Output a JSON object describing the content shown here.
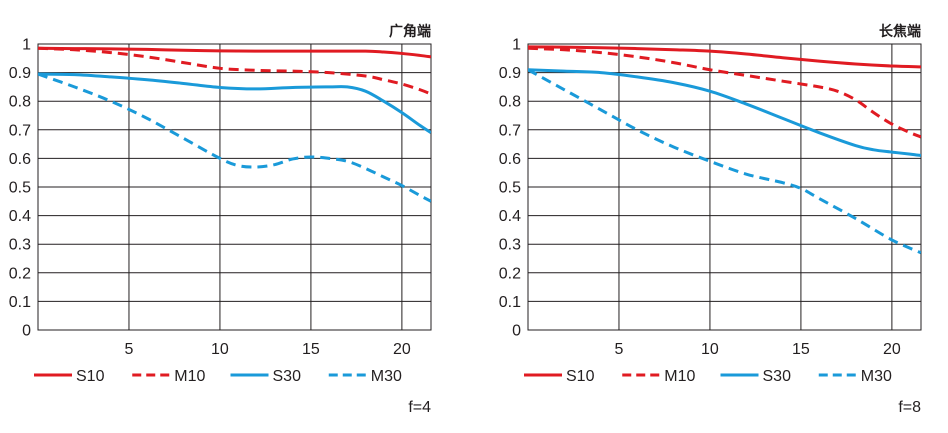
{
  "chart_data": [
    {
      "type": "line",
      "title": "广角端",
      "aperture_label": "f=4",
      "xlabel": "",
      "ylabel": "",
      "xlim": [
        0,
        21.6
      ],
      "ylim": [
        0,
        1
      ],
      "x_ticks": [
        5,
        10,
        15,
        20
      ],
      "x_tick_labels": [
        "5",
        "10",
        "15",
        "20"
      ],
      "y_ticks": [
        0,
        0.1,
        0.2,
        0.3,
        0.4,
        0.5,
        0.6,
        0.7,
        0.8,
        0.9,
        1
      ],
      "y_tick_labels": [
        "0",
        "0.1",
        "0.2",
        "0.3",
        "0.4",
        "0.5",
        "0.6",
        "0.7",
        "0.8",
        "0.9",
        "1"
      ],
      "grid": true,
      "legend_position": "bottom",
      "series": [
        {
          "name": "S10",
          "color": "#e01b22",
          "dash": "solid",
          "x": [
            0,
            2,
            4,
            6,
            8,
            10,
            12,
            14,
            16,
            18,
            19,
            20,
            21,
            21.6
          ],
          "values": [
            0.985,
            0.984,
            0.983,
            0.981,
            0.978,
            0.976,
            0.975,
            0.975,
            0.975,
            0.975,
            0.972,
            0.967,
            0.96,
            0.955
          ]
        },
        {
          "name": "M10",
          "color": "#e01b22",
          "dash": "dashed",
          "x": [
            0,
            2,
            4,
            6,
            8,
            10,
            12,
            14,
            16,
            18,
            19,
            20,
            21,
            21.6
          ],
          "values": [
            0.985,
            0.98,
            0.97,
            0.955,
            0.935,
            0.915,
            0.908,
            0.905,
            0.9,
            0.888,
            0.875,
            0.86,
            0.84,
            0.825
          ]
        },
        {
          "name": "S30",
          "color": "#1a9ad9",
          "dash": "solid",
          "x": [
            0,
            2,
            4,
            6,
            8,
            10,
            12,
            14,
            16,
            17,
            18,
            19,
            20,
            21,
            21.6
          ],
          "values": [
            0.895,
            0.893,
            0.885,
            0.875,
            0.862,
            0.848,
            0.843,
            0.848,
            0.85,
            0.85,
            0.835,
            0.8,
            0.76,
            0.715,
            0.69
          ]
        },
        {
          "name": "M30",
          "color": "#1a9ad9",
          "dash": "dashed",
          "x": [
            0,
            2,
            4,
            6,
            8,
            10,
            11,
            12,
            13,
            14,
            15,
            16,
            17,
            18,
            19,
            20,
            21,
            21.6
          ],
          "values": [
            0.895,
            0.85,
            0.8,
            0.74,
            0.67,
            0.6,
            0.575,
            0.57,
            0.578,
            0.598,
            0.605,
            0.6,
            0.59,
            0.565,
            0.535,
            0.505,
            0.47,
            0.45
          ]
        }
      ]
    },
    {
      "type": "line",
      "title": "长焦端",
      "aperture_label": "f=8",
      "xlabel": "",
      "ylabel": "",
      "xlim": [
        0,
        21.6
      ],
      "ylim": [
        0,
        1
      ],
      "x_ticks": [
        5,
        10,
        15,
        20
      ],
      "x_tick_labels": [
        "5",
        "10",
        "15",
        "20"
      ],
      "y_ticks": [
        0,
        0.1,
        0.2,
        0.3,
        0.4,
        0.5,
        0.6,
        0.7,
        0.8,
        0.9,
        1
      ],
      "y_tick_labels": [
        "0",
        "0.1",
        "0.2",
        "0.3",
        "0.4",
        "0.5",
        "0.6",
        "0.7",
        "0.8",
        "0.9",
        "1"
      ],
      "grid": true,
      "legend_position": "bottom",
      "series": [
        {
          "name": "S10",
          "color": "#e01b22",
          "dash": "solid",
          "x": [
            0,
            2,
            4,
            6,
            8,
            10,
            12,
            14,
            16,
            18,
            20,
            21.6
          ],
          "values": [
            0.99,
            0.989,
            0.987,
            0.984,
            0.98,
            0.975,
            0.965,
            0.952,
            0.94,
            0.93,
            0.923,
            0.92
          ]
        },
        {
          "name": "M10",
          "color": "#e01b22",
          "dash": "dashed",
          "x": [
            0,
            2,
            4,
            6,
            8,
            10,
            12,
            14,
            16,
            17,
            18,
            19,
            20,
            21,
            21.6
          ],
          "values": [
            0.985,
            0.98,
            0.97,
            0.955,
            0.935,
            0.91,
            0.89,
            0.87,
            0.85,
            0.835,
            0.805,
            0.76,
            0.72,
            0.69,
            0.675
          ]
        },
        {
          "name": "S30",
          "color": "#1a9ad9",
          "dash": "solid",
          "x": [
            0,
            2,
            4,
            6,
            8,
            10,
            12,
            14,
            16,
            18,
            19,
            20,
            21,
            21.6
          ],
          "values": [
            0.91,
            0.905,
            0.9,
            0.885,
            0.865,
            0.835,
            0.79,
            0.74,
            0.69,
            0.645,
            0.63,
            0.622,
            0.615,
            0.61
          ]
        },
        {
          "name": "M30",
          "color": "#1a9ad9",
          "dash": "dashed",
          "x": [
            0,
            2,
            4,
            6,
            8,
            10,
            12,
            14,
            15,
            16,
            18,
            20,
            21.6
          ],
          "values": [
            0.91,
            0.84,
            0.77,
            0.7,
            0.64,
            0.59,
            0.545,
            0.515,
            0.495,
            0.46,
            0.39,
            0.315,
            0.27
          ]
        }
      ]
    }
  ]
}
